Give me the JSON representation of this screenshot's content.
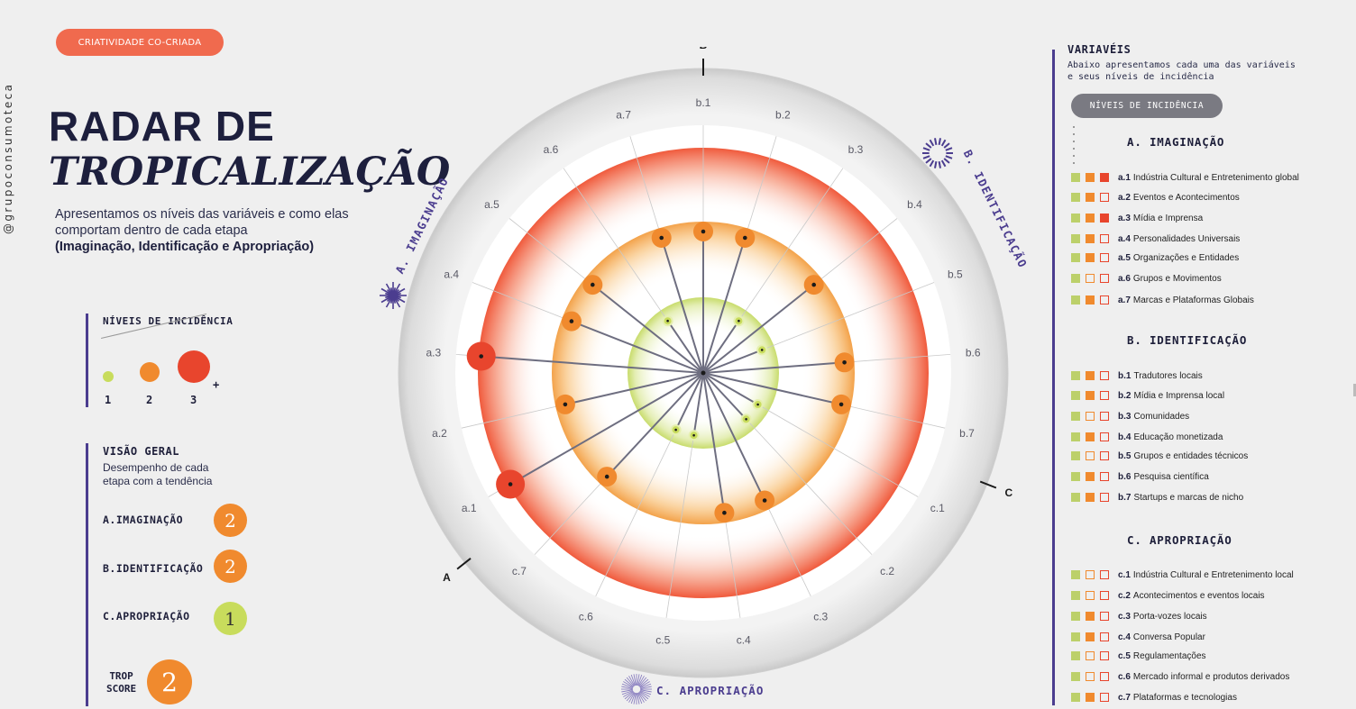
{
  "badge": "CRIATIVIDADE CO-CRIADA",
  "handle": "@grupoconsumoteca",
  "title_line1": "RADAR DE",
  "title_line2": "TROPICALIZAÇÃO",
  "subtitle": "Apresentamos os níveis das variáveis e como elas comportam dentro de cada etapa",
  "subtitle_bold": "(Imaginação, Identificação e Apropriação)",
  "levels_legend": {
    "title": "NÍVEIS DE INCIDÊNCIA",
    "labels": [
      "1",
      "2",
      "3"
    ],
    "plus": "+"
  },
  "overview": {
    "title": "VISÃO GERAL",
    "description": "Desempenho de cada etapa com a tendência",
    "stages": [
      {
        "label": "A.IMAGINAÇÃO",
        "score": "2",
        "color": "#f08a2e"
      },
      {
        "label": "B.IDENTIFICAÇÃO",
        "score": "2",
        "color": "#f08a2e"
      },
      {
        "label": "C.APROPRIAÇÃO",
        "score": "1",
        "color": "#c8dc5c"
      }
    ],
    "trop_label_1": "TROP",
    "trop_label_2": "SCORE",
    "trop_score": "2",
    "trop_color": "#f08a2e"
  },
  "colors": {
    "level1": "#c8dc5c",
    "level2": "#f08a2e",
    "level3": "#e8452d",
    "accent": "#4b3d8f",
    "badge": "#f06a4e"
  },
  "chart_data": {
    "type": "radar",
    "axes": {
      "a": "A",
      "b": "B",
      "c": "C"
    },
    "sections": [
      "A. IMAGINAÇÃO",
      "B. IDENTIFICAÇÃO",
      "C. APROPRIAÇÃO"
    ],
    "rings": [
      1,
      2,
      3
    ],
    "points": [
      {
        "label": "b.1",
        "level": 2
      },
      {
        "label": "b.2",
        "level": 2
      },
      {
        "label": "b.3",
        "level": 1
      },
      {
        "label": "b.4",
        "level": 2
      },
      {
        "label": "b.5",
        "level": 1
      },
      {
        "label": "b.6",
        "level": 2
      },
      {
        "label": "b.7",
        "level": 2
      },
      {
        "label": "c.1",
        "level": 1
      },
      {
        "label": "c.2",
        "level": 1
      },
      {
        "label": "c.3",
        "level": 2
      },
      {
        "label": "c.4",
        "level": 2
      },
      {
        "label": "c.5",
        "level": 1
      },
      {
        "label": "c.6",
        "level": 1
      },
      {
        "label": "c.7",
        "level": 2
      },
      {
        "label": "a.1",
        "level": 3
      },
      {
        "label": "a.2",
        "level": 2
      },
      {
        "label": "a.3",
        "level": 3
      },
      {
        "label": "a.4",
        "level": 2
      },
      {
        "label": "a.5",
        "level": 2
      },
      {
        "label": "a.6",
        "level": 1
      },
      {
        "label": "a.7",
        "level": 2
      }
    ]
  },
  "variables": {
    "title": "VARIAVÉIS",
    "description": "Abaixo apresentamos cada uma das variáveis e seus níveis de incidência",
    "pill": "NÍVEIS DE INCIDÊNCIA",
    "sections": [
      {
        "title": "A. IMAGINAÇÃO",
        "items": [
          {
            "code": "a.1",
            "name": "Indústria Cultural e Entretenimento global",
            "level": 3
          },
          {
            "code": "a.2",
            "name": "Eventos e Acontecimentos",
            "level": 2
          },
          {
            "code": "a.3",
            "name": "Mídia e Imprensa",
            "level": 3
          },
          {
            "code": "a.4",
            "name": "Personalidades Universais",
            "level": 2
          },
          {
            "code": "a.5",
            "name": "Organizações e Entidades",
            "level": 2
          },
          {
            "code": "a.6",
            "name": "Grupos e Movimentos",
            "level": 1
          },
          {
            "code": "a.7",
            "name": "Marcas e Plataformas Globais",
            "level": 2
          }
        ]
      },
      {
        "title": "B. IDENTIFICAÇÃO",
        "items": [
          {
            "code": "b.1",
            "name": "Tradutores locais",
            "level": 2
          },
          {
            "code": "b.2",
            "name": "Mídia e Imprensa local",
            "level": 2
          },
          {
            "code": "b.3",
            "name": "Comunidades",
            "level": 1
          },
          {
            "code": "b.4",
            "name": "Educação monetizada",
            "level": 2
          },
          {
            "code": "b.5",
            "name": "Grupos e entidades técnicos",
            "level": 1
          },
          {
            "code": "b.6",
            "name": "Pesquisa científica",
            "level": 2
          },
          {
            "code": "b.7",
            "name": "Startups e marcas de nicho",
            "level": 2
          }
        ]
      },
      {
        "title": "C. APROPRIAÇÃO",
        "items": [
          {
            "code": "c.1",
            "name": "Indústria Cultural e Entretenimento local",
            "level": 1
          },
          {
            "code": "c.2",
            "name": "Acontecimentos e eventos locais",
            "level": 1
          },
          {
            "code": "c.3",
            "name": "Porta-vozes locais",
            "level": 2
          },
          {
            "code": "c.4",
            "name": "Conversa Popular",
            "level": 2
          },
          {
            "code": "c.5",
            "name": "Regulamentações",
            "level": 1
          },
          {
            "code": "c.6",
            "name": "Mercado informal e produtos derivados",
            "level": 1
          },
          {
            "code": "c.7",
            "name": "Plataformas e tecnologias",
            "level": 2
          }
        ]
      }
    ]
  }
}
